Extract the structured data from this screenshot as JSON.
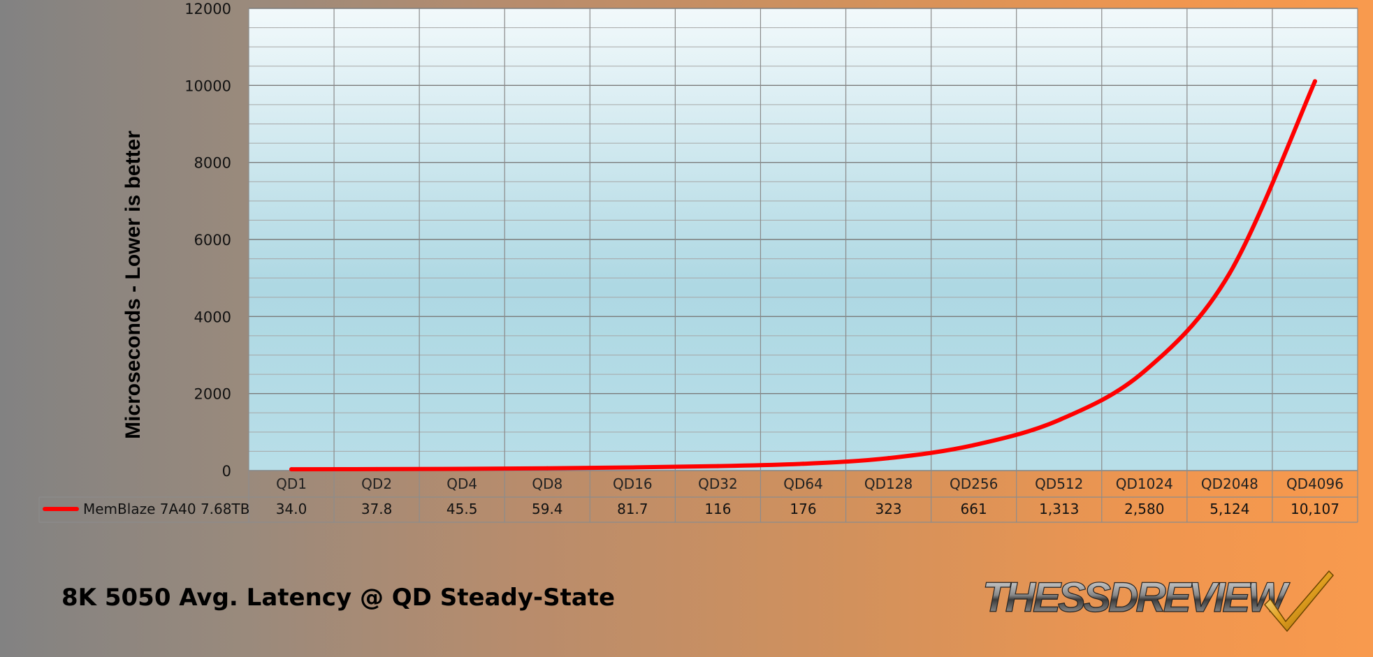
{
  "chart_data": {
    "type": "line",
    "title": "8K 5050 Avg. Latency @ QD Steady-State",
    "ylabel": "Microseconds - Lower is better",
    "xlabel": "",
    "ylim": [
      0,
      12000
    ],
    "yticks": [
      0,
      2000,
      4000,
      6000,
      8000,
      10000,
      12000
    ],
    "grid": true,
    "legend_placement": "data-table-left",
    "categories": [
      "QD1",
      "QD2",
      "QD4",
      "QD8",
      "QD16",
      "QD32",
      "QD64",
      "QD128",
      "QD256",
      "QD512",
      "QD1024",
      "QD2048",
      "QD4096"
    ],
    "series": [
      {
        "name": "MemBlaze 7A40 7.68TB",
        "color": "#ff0000",
        "values": [
          34.0,
          37.8,
          45.5,
          59.4,
          81.7,
          116,
          176,
          323,
          661,
          1313,
          2580,
          5124,
          10107
        ],
        "labels": [
          "34.0",
          "37.8",
          "45.5",
          "59.4",
          "81.7",
          "116",
          "176",
          "323",
          "661",
          "1,313",
          "2,580",
          "5,124",
          "10,107"
        ]
      }
    ]
  },
  "logo": {
    "text": "THESSDREVIEW",
    "check_icon": "checkmark-icon"
  }
}
